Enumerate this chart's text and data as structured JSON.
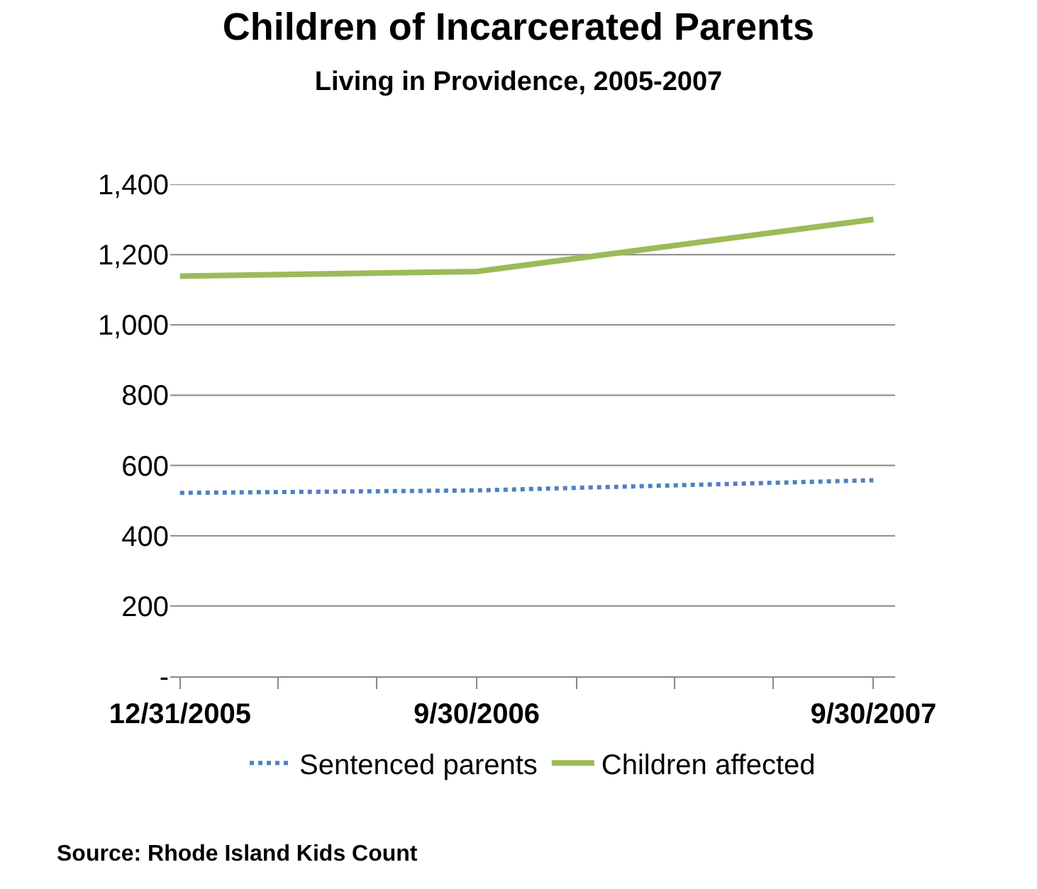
{
  "chart_data": {
    "type": "line",
    "title": "Children of Incarcerated Parents",
    "subtitle": "Living in Providence, 2005-2007",
    "x": [
      "2005-12-31",
      "2006-09-30",
      "2007-09-30"
    ],
    "series": [
      {
        "name": "Sentenced parents",
        "color": "#4f81bd",
        "values": [
          522,
          529,
          558
        ],
        "line_style": "dotted"
      },
      {
        "name": "Children affected",
        "color": "#9bbb59",
        "values": [
          1139,
          1152,
          1300
        ],
        "line_style": "solid"
      }
    ],
    "xlim": [
      "2005-12-22",
      "2007-10-20"
    ],
    "xticks": [
      {
        "value": "2005-12-31",
        "label": "12/31/2005"
      },
      {
        "value": "2006-03-31",
        "label": null
      },
      {
        "value": "2006-06-30",
        "label": null
      },
      {
        "value": "2006-09-30",
        "label": "9/30/2006"
      },
      {
        "value": "2006-12-31",
        "label": null
      },
      {
        "value": "2007-03-31",
        "label": null
      },
      {
        "value": "2007-06-30",
        "label": null
      },
      {
        "value": "2007-09-30",
        "label": "9/30/2007"
      }
    ],
    "ylim": [
      0,
      1400
    ],
    "yticks": [
      {
        "value": 0,
        "label": "-"
      },
      {
        "value": 200,
        "label": "200"
      },
      {
        "value": 400,
        "label": "400"
      },
      {
        "value": 600,
        "label": "600"
      },
      {
        "value": 800,
        "label": "800"
      },
      {
        "value": 1000,
        "label": "1,000"
      },
      {
        "value": 1200,
        "label": "1,200"
      },
      {
        "value": 1400,
        "label": "1,400"
      }
    ],
    "grid": "y",
    "legend": "bottom",
    "marker": "none",
    "annotations": [
      "Source: Rhode Island Kids Count"
    ]
  }
}
